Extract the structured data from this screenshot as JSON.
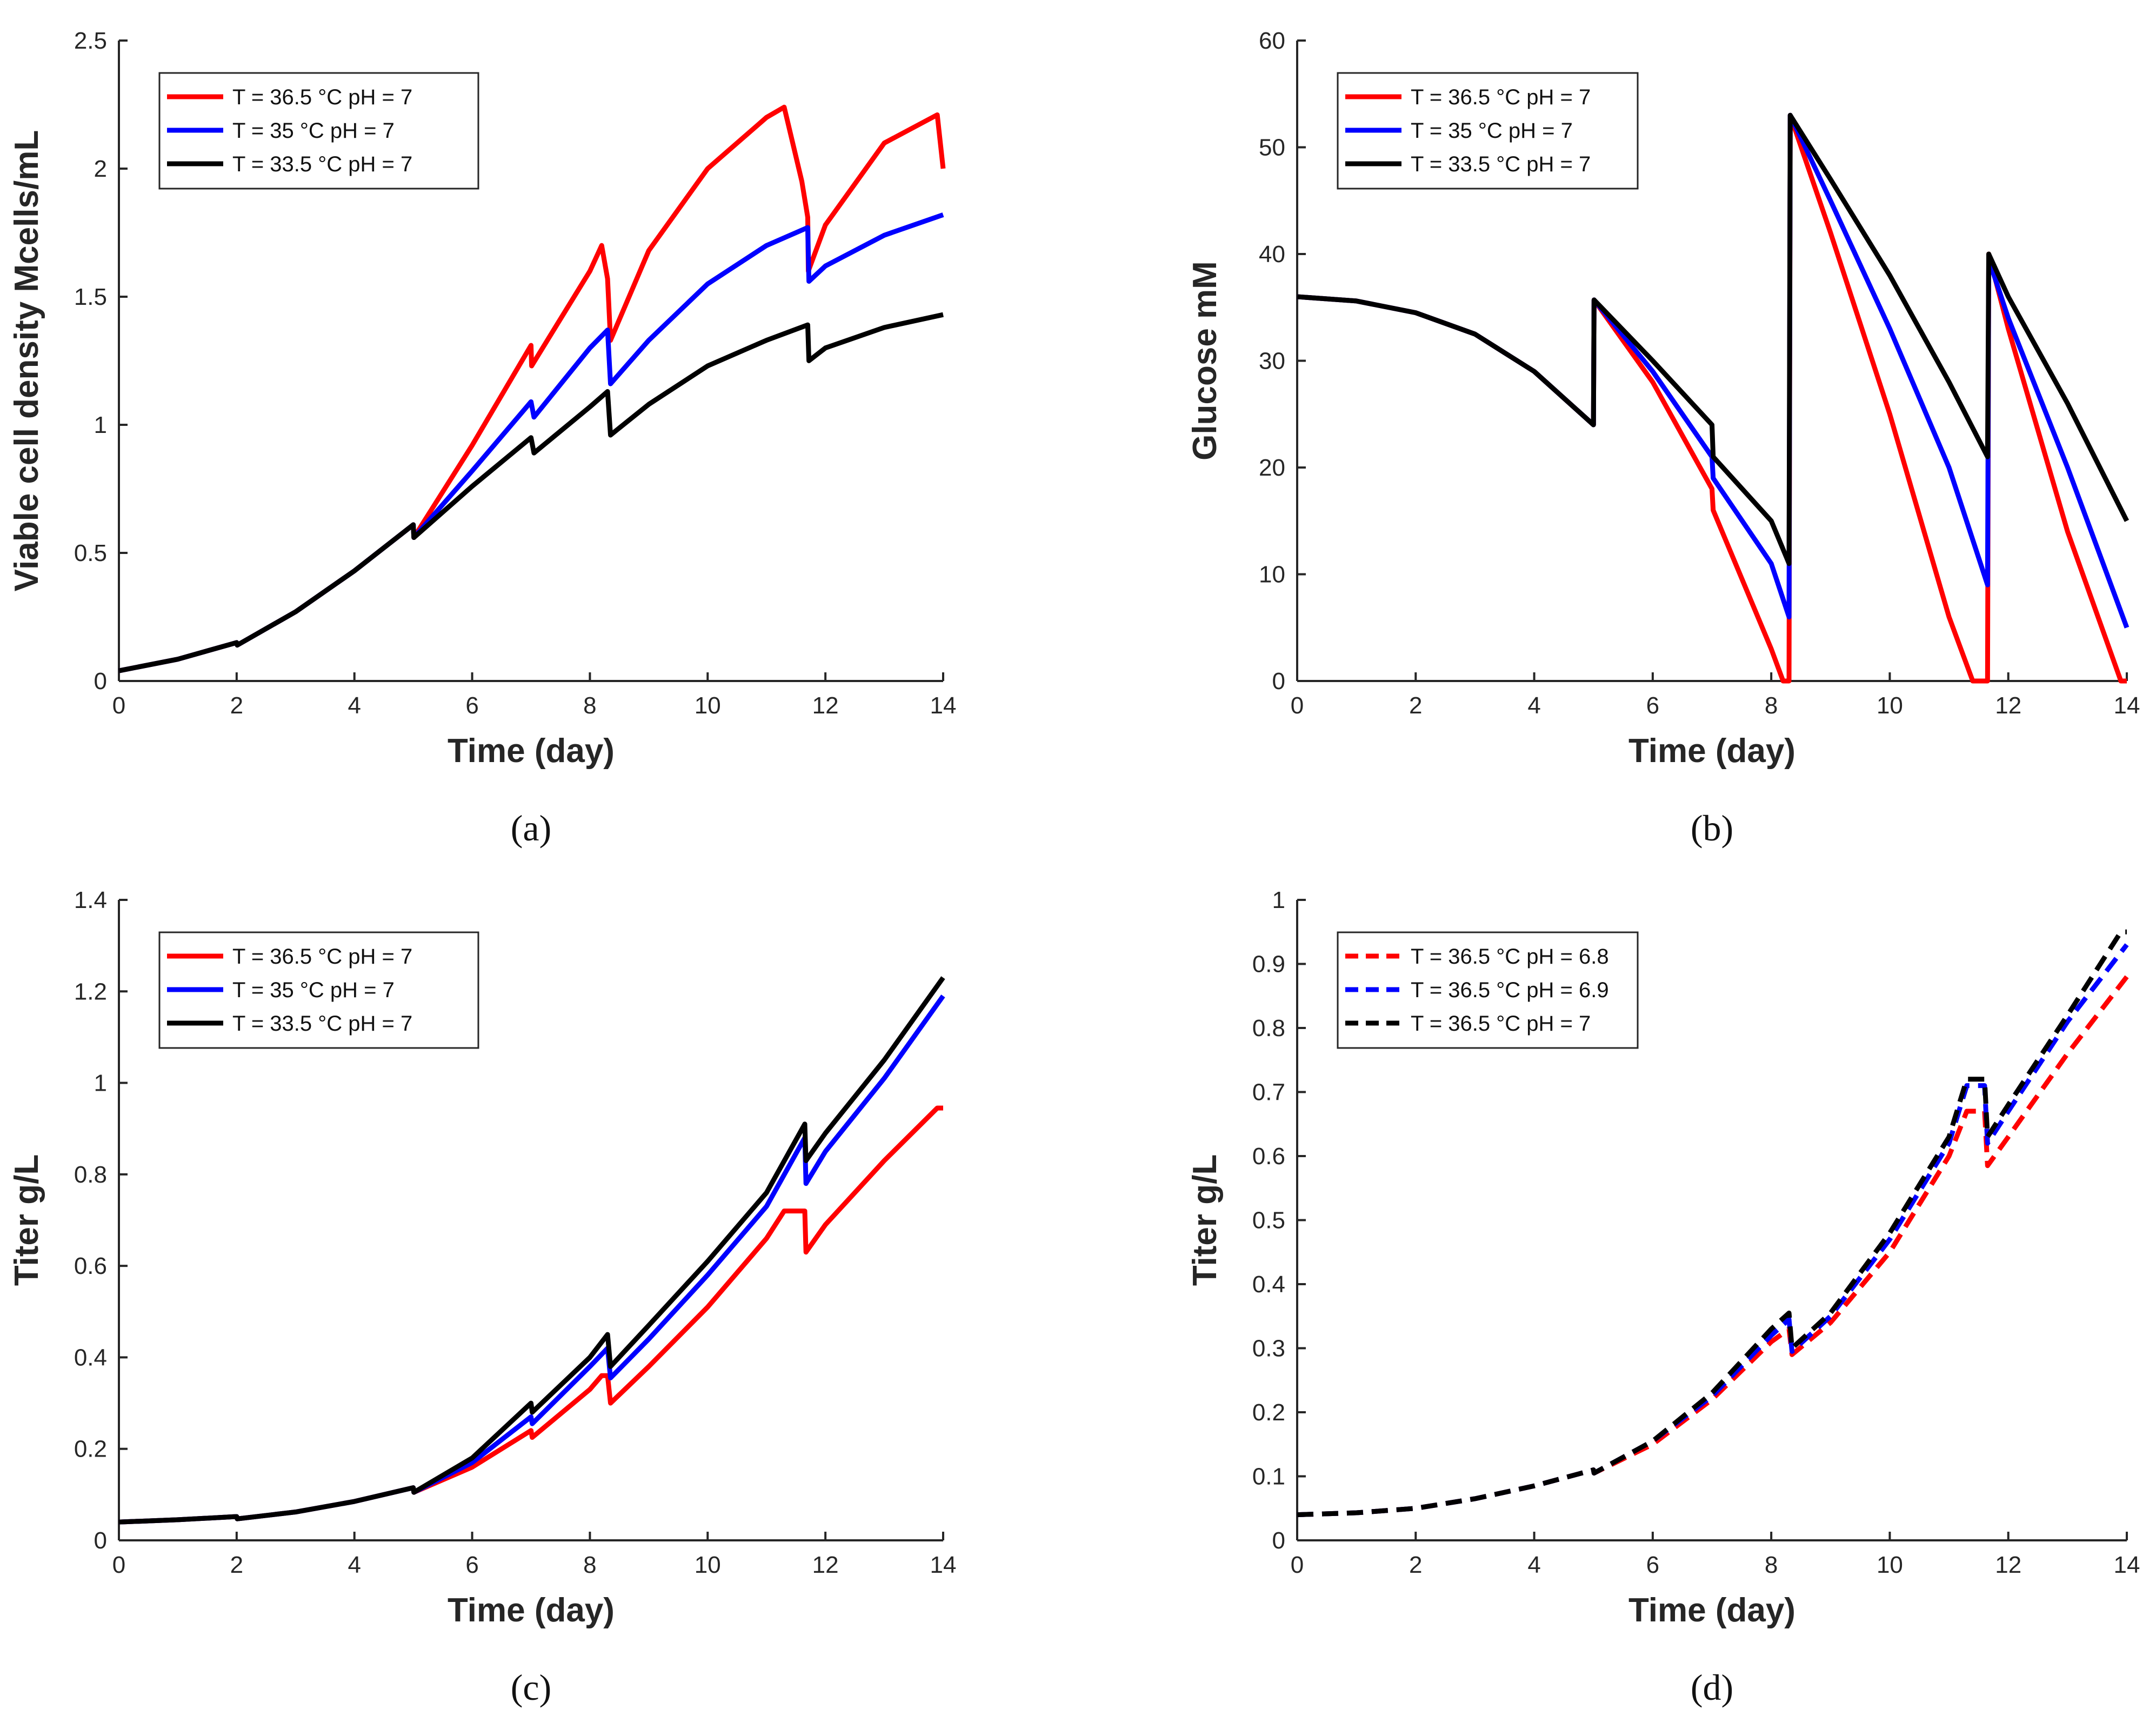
{
  "chart_data": [
    {
      "type": "line",
      "caption": "(a)",
      "xlabel": "Time (day)",
      "ylabel": "Viable cell density Mcells/mL",
      "xlim": [
        0,
        14
      ],
      "ylim": [
        0,
        2.5
      ],
      "xticks": [
        0,
        2,
        4,
        6,
        8,
        10,
        12,
        14
      ],
      "yticks": [
        0,
        0.5,
        1,
        1.5,
        2,
        2.5
      ],
      "legend_position": "top-left",
      "series": [
        {
          "name": "T = 36.5 °C pH = 7",
          "color": "#ff0000",
          "dash": false,
          "x": [
            0,
            1,
            2,
            2.01,
            3,
            4,
            5,
            5.01,
            6,
            7,
            7.01,
            8,
            8.2,
            8.3,
            8.35,
            9,
            10,
            11,
            11.3,
            11.6,
            11.7,
            11.71,
            12,
            13,
            13.9,
            14
          ],
          "y": [
            0.04,
            0.085,
            0.15,
            0.14,
            0.27,
            0.43,
            0.61,
            0.56,
            0.92,
            1.31,
            1.23,
            1.6,
            1.7,
            1.57,
            1.33,
            1.68,
            2.0,
            2.2,
            2.24,
            1.95,
            1.81,
            1.6,
            1.78,
            2.1,
            2.21,
            2.0
          ]
        },
        {
          "name": "T = 35 °C pH = 7",
          "color": "#0000ff",
          "dash": false,
          "x": [
            0,
            1,
            2,
            2.01,
            3,
            4,
            5,
            5.01,
            6,
            7,
            7.05,
            8,
            8.3,
            8.35,
            9,
            10,
            11,
            11.7,
            11.72,
            12,
            13,
            14
          ],
          "y": [
            0.04,
            0.085,
            0.15,
            0.14,
            0.27,
            0.43,
            0.61,
            0.56,
            0.82,
            1.09,
            1.03,
            1.3,
            1.37,
            1.16,
            1.33,
            1.55,
            1.7,
            1.77,
            1.56,
            1.62,
            1.74,
            1.82
          ]
        },
        {
          "name": "T = 33.5 °C pH = 7",
          "color": "#000000",
          "dash": false,
          "x": [
            0,
            1,
            2,
            2.01,
            3,
            4,
            5,
            5.01,
            6,
            7,
            7.05,
            8,
            8.3,
            8.35,
            9,
            10,
            11,
            11.7,
            11.72,
            12,
            13,
            14
          ],
          "y": [
            0.04,
            0.085,
            0.15,
            0.14,
            0.27,
            0.43,
            0.61,
            0.56,
            0.76,
            0.95,
            0.89,
            1.07,
            1.13,
            0.96,
            1.08,
            1.23,
            1.33,
            1.39,
            1.25,
            1.3,
            1.38,
            1.43
          ]
        }
      ]
    },
    {
      "type": "line",
      "caption": "(b)",
      "xlabel": "Time (day)",
      "ylabel": "Glucose mM",
      "xlim": [
        0,
        14
      ],
      "ylim": [
        0,
        60
      ],
      "xticks": [
        0,
        2,
        4,
        6,
        8,
        10,
        12,
        14
      ],
      "yticks": [
        0,
        10,
        20,
        30,
        40,
        50,
        60
      ],
      "legend_position": "top-left",
      "series": [
        {
          "name": "T = 36.5 °C pH = 7",
          "color": "#ff0000",
          "dash": false,
          "x": [
            0,
            1,
            2,
            3,
            4,
            5,
            5.01,
            6,
            7,
            7.02,
            8,
            8.2,
            8.3,
            8.32,
            9,
            10,
            11,
            11.4,
            11.65,
            11.67,
            12,
            13,
            13.9,
            14
          ],
          "y": [
            36,
            35.6,
            34.5,
            32.5,
            29,
            24,
            35.7,
            28,
            18,
            16,
            3,
            0,
            0,
            53,
            42,
            25,
            6,
            0,
            0,
            40,
            33,
            14,
            0,
            0
          ]
        },
        {
          "name": "T = 35 °C pH = 7",
          "color": "#0000ff",
          "dash": false,
          "x": [
            0,
            1,
            2,
            3,
            4,
            5,
            5.01,
            6,
            7,
            7.02,
            8,
            8.3,
            8.32,
            9,
            10,
            11,
            11.65,
            11.67,
            12,
            13,
            14
          ],
          "y": [
            36,
            35.6,
            34.5,
            32.5,
            29,
            24,
            35.7,
            29,
            21,
            19,
            11,
            6,
            53,
            45,
            33,
            20,
            9,
            39.5,
            34,
            20,
            5
          ]
        },
        {
          "name": "T = 33.5 °C pH = 7",
          "color": "#000000",
          "dash": false,
          "x": [
            0,
            1,
            2,
            3,
            4,
            5,
            5.01,
            6,
            7,
            7.02,
            8,
            8.3,
            8.32,
            9,
            10,
            11,
            11.65,
            11.67,
            12,
            13,
            14
          ],
          "y": [
            36,
            35.6,
            34.5,
            32.5,
            29,
            24,
            35.7,
            30,
            24,
            21,
            15,
            11,
            53,
            47,
            38,
            28,
            21,
            40,
            36,
            26,
            15
          ]
        }
      ]
    },
    {
      "type": "line",
      "caption": "(c)",
      "xlabel": "Time (day)",
      "ylabel": "Titer g/L",
      "xlim": [
        0,
        14
      ],
      "ylim": [
        0,
        1.4
      ],
      "xticks": [
        0,
        2,
        4,
        6,
        8,
        10,
        12,
        14
      ],
      "yticks": [
        0,
        0.2,
        0.4,
        0.6,
        0.8,
        1,
        1.2,
        1.4
      ],
      "legend_position": "top-left",
      "series": [
        {
          "name": "T = 36.5 °C pH = 7",
          "color": "#ff0000",
          "dash": false,
          "x": [
            0,
            1,
            2,
            2.01,
            3,
            4,
            5,
            5.01,
            6,
            7,
            7.02,
            8,
            8.2,
            8.3,
            8.35,
            9,
            10,
            11,
            11.3,
            11.65,
            11.67,
            12,
            13,
            13.9,
            14
          ],
          "y": [
            0.04,
            0.045,
            0.052,
            0.047,
            0.062,
            0.085,
            0.115,
            0.105,
            0.16,
            0.24,
            0.225,
            0.33,
            0.36,
            0.36,
            0.3,
            0.38,
            0.51,
            0.66,
            0.72,
            0.72,
            0.63,
            0.69,
            0.83,
            0.945,
            0.945
          ]
        },
        {
          "name": "T = 35 °C pH = 7",
          "color": "#0000ff",
          "dash": false,
          "x": [
            0,
            1,
            2,
            2.01,
            3,
            4,
            5,
            5.01,
            6,
            7,
            7.02,
            8,
            8.3,
            8.35,
            9,
            10,
            11,
            11.65,
            11.67,
            12,
            13,
            14
          ],
          "y": [
            0.04,
            0.045,
            0.052,
            0.047,
            0.062,
            0.085,
            0.115,
            0.105,
            0.17,
            0.27,
            0.255,
            0.38,
            0.42,
            0.355,
            0.44,
            0.58,
            0.73,
            0.88,
            0.78,
            0.85,
            1.01,
            1.19
          ]
        },
        {
          "name": "T = 33.5 °C pH = 7",
          "color": "#000000",
          "dash": false,
          "x": [
            0,
            1,
            2,
            2.01,
            3,
            4,
            5,
            5.01,
            6,
            7,
            7.02,
            8,
            8.3,
            8.35,
            9,
            10,
            11,
            11.65,
            11.67,
            12,
            13,
            14
          ],
          "y": [
            0.04,
            0.045,
            0.052,
            0.047,
            0.062,
            0.085,
            0.115,
            0.105,
            0.18,
            0.3,
            0.28,
            0.4,
            0.45,
            0.38,
            0.47,
            0.61,
            0.76,
            0.91,
            0.83,
            0.89,
            1.05,
            1.23
          ]
        }
      ]
    },
    {
      "type": "line",
      "caption": "(d)",
      "xlabel": "Time (day)",
      "ylabel": "Titer g/L",
      "xlim": [
        0,
        14
      ],
      "ylim": [
        0,
        1
      ],
      "xticks": [
        0,
        2,
        4,
        6,
        8,
        10,
        12,
        14
      ],
      "yticks": [
        0,
        0.1,
        0.2,
        0.3,
        0.4,
        0.5,
        0.6,
        0.7,
        0.8,
        0.9,
        1
      ],
      "legend_position": "top-left",
      "series": [
        {
          "name": "T = 36.5 °C  pH = 6.8",
          "color": "#ff0000",
          "dash": true,
          "x": [
            0,
            1,
            2,
            3,
            4,
            5,
            5.01,
            6,
            7,
            8,
            8.3,
            8.35,
            9,
            10,
            11,
            11.3,
            11.6,
            11.65,
            12,
            13,
            14
          ],
          "y": [
            0.04,
            0.043,
            0.05,
            0.065,
            0.085,
            0.11,
            0.105,
            0.15,
            0.22,
            0.31,
            0.33,
            0.29,
            0.34,
            0.45,
            0.6,
            0.67,
            0.67,
            0.585,
            0.63,
            0.76,
            0.88
          ]
        },
        {
          "name": "T = 36.5 °C  pH = 6.9",
          "color": "#0000ff",
          "dash": true,
          "x": [
            0,
            1,
            2,
            3,
            4,
            5,
            5.01,
            6,
            7,
            8,
            8.3,
            8.35,
            9,
            10,
            11,
            11.3,
            11.6,
            11.65,
            12,
            13,
            14
          ],
          "y": [
            0.04,
            0.043,
            0.05,
            0.065,
            0.085,
            0.11,
            0.105,
            0.155,
            0.225,
            0.32,
            0.345,
            0.295,
            0.35,
            0.47,
            0.62,
            0.71,
            0.71,
            0.62,
            0.67,
            0.81,
            0.93
          ]
        },
        {
          "name": "T = 36.5 °C  pH = 7",
          "color": "#000000",
          "dash": true,
          "x": [
            0,
            1,
            2,
            3,
            4,
            5,
            5.01,
            6,
            7,
            8,
            8.3,
            8.35,
            9,
            10,
            11,
            11.3,
            11.6,
            11.65,
            12,
            13,
            13.9,
            14
          ],
          "y": [
            0.04,
            0.043,
            0.05,
            0.065,
            0.085,
            0.11,
            0.105,
            0.155,
            0.23,
            0.33,
            0.355,
            0.3,
            0.355,
            0.48,
            0.63,
            0.72,
            0.72,
            0.63,
            0.68,
            0.82,
            0.95,
            0.95
          ]
        }
      ]
    }
  ]
}
